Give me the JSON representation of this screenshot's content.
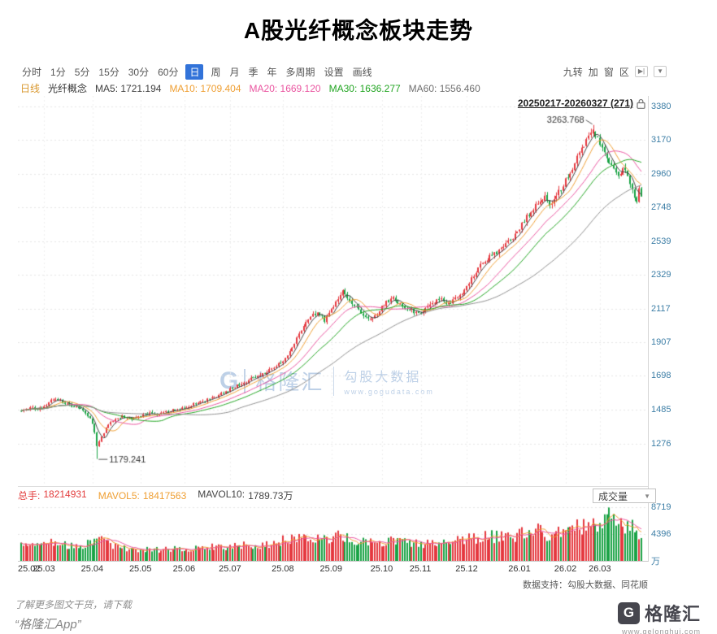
{
  "page": {
    "title": "A股光纤概念板块走势"
  },
  "toolbar": {
    "items": [
      {
        "key": "timeshare",
        "label": "分时",
        "active": false
      },
      {
        "key": "1min",
        "label": "1分",
        "active": false
      },
      {
        "key": "5min",
        "label": "5分",
        "active": false
      },
      {
        "key": "15min",
        "label": "15分",
        "active": false
      },
      {
        "key": "30min",
        "label": "30分",
        "active": false
      },
      {
        "key": "60min",
        "label": "60分",
        "active": false
      },
      {
        "key": "daily",
        "label": "日",
        "active": true
      },
      {
        "key": "weekly",
        "label": "周",
        "active": false
      },
      {
        "key": "monthly",
        "label": "月",
        "active": false
      },
      {
        "key": "quarterly",
        "label": "季",
        "active": false
      },
      {
        "key": "yearly",
        "label": "年",
        "active": false
      },
      {
        "key": "multi-period",
        "label": "多周期",
        "active": false
      },
      {
        "key": "settings",
        "label": "设置",
        "active": false
      },
      {
        "key": "draw-line",
        "label": "画线",
        "active": false
      }
    ],
    "right_items": [
      {
        "key": "nine-turn",
        "label": "九转"
      },
      {
        "key": "add",
        "label": "加"
      },
      {
        "key": "window",
        "label": "窗"
      },
      {
        "key": "zone",
        "label": "区"
      }
    ],
    "skip_icon": "▶|",
    "dropdown_icon": "▼"
  },
  "info_bar": {
    "period_label": "日线",
    "symbol": "光纤概念",
    "ma_items": [
      {
        "key": "ma5",
        "label": "MA5:",
        "value": "1721.194",
        "color": "#3f3f3f"
      },
      {
        "key": "ma10",
        "label": "MA10:",
        "value": "1709.404",
        "color": "#ef9f33"
      },
      {
        "key": "ma20",
        "label": "MA20:",
        "value": "1669.120",
        "color": "#ea55a0"
      },
      {
        "key": "ma30",
        "label": "MA30:",
        "value": "1636.277",
        "color": "#22a522"
      },
      {
        "key": "ma60",
        "label": "MA60:",
        "value": "1556.460",
        "color": "#6f6f6f"
      }
    ],
    "range_label": "20250217-20260327 (271)"
  },
  "watermark": {
    "logo_letter": "G",
    "brand": "格隆汇",
    "product": "勾股大数据",
    "url": "www.gogudata.com"
  },
  "volume_bar": {
    "zongshou_label": "总手:",
    "zongshou_value": "18214931",
    "mavol5_label": "MAVOL5:",
    "mavol5_value": "18417563",
    "mavol10_label": "MAVOL10:",
    "mavol10_value": "1789.73万",
    "selector_label": "成交量",
    "selector_caret": "▼"
  },
  "credit": "数据支持：勾股大数据、同花顺",
  "footer": {
    "promo_line1": "了解更多图文干货，请下载",
    "promo_line2": "“格隆汇App”",
    "logo_letter": "G",
    "logo_text": "格隆汇",
    "site_url": "www.gelonghui.com"
  },
  "chart_data": {
    "type": "candlestick",
    "title": "A股光纤概念板块走势",
    "period": "日线",
    "symbol": "光纤概念",
    "date_range": "20250217-20260327",
    "trading_days": 271,
    "price_axis": {
      "ticks": [
        3380,
        3170,
        2960,
        2748,
        2539,
        2329,
        2117,
        1907,
        1698,
        1485,
        1276
      ],
      "min": 1010,
      "max": 3445
    },
    "volume_axis": {
      "ticks": [
        8719,
        4396
      ],
      "unit": "万",
      "max": 9300
    },
    "x_labels": [
      {
        "day": 0,
        "label": "25.02"
      },
      {
        "day": 10,
        "label": "25.03"
      },
      {
        "day": 31,
        "label": "25.04"
      },
      {
        "day": 52,
        "label": "25.05"
      },
      {
        "day": 71,
        "label": "25.06"
      },
      {
        "day": 91,
        "label": "25.07"
      },
      {
        "day": 114,
        "label": "25.08"
      },
      {
        "day": 135,
        "label": "25.09"
      },
      {
        "day": 157,
        "label": "25.10"
      },
      {
        "day": 174,
        "label": "25.11"
      },
      {
        "day": 194,
        "label": "25.12"
      },
      {
        "day": 217,
        "label": "26.01"
      },
      {
        "day": 237,
        "label": "26.02"
      },
      {
        "day": 252,
        "label": "26.03"
      }
    ],
    "annotations": {
      "high": {
        "day": 249,
        "value": 3263.768,
        "label": "3263.768"
      },
      "low": {
        "day": 33,
        "value": 1179.241,
        "label": "1179.241"
      }
    },
    "price_keyframes": [
      [
        0,
        1480
      ],
      [
        4,
        1500
      ],
      [
        8,
        1492
      ],
      [
        10,
        1512
      ],
      [
        14,
        1556
      ],
      [
        17,
        1545
      ],
      [
        21,
        1516
      ],
      [
        25,
        1498
      ],
      [
        29,
        1452
      ],
      [
        31,
        1400
      ],
      [
        32,
        1345
      ],
      [
        33,
        1262
      ],
      [
        34,
        1290
      ],
      [
        36,
        1345
      ],
      [
        38,
        1398
      ],
      [
        41,
        1426
      ],
      [
        44,
        1445
      ],
      [
        48,
        1432
      ],
      [
        52,
        1452
      ],
      [
        56,
        1462
      ],
      [
        60,
        1455
      ],
      [
        64,
        1478
      ],
      [
        68,
        1490
      ],
      [
        71,
        1502
      ],
      [
        75,
        1522
      ],
      [
        79,
        1540
      ],
      [
        83,
        1562
      ],
      [
        87,
        1585
      ],
      [
        91,
        1612
      ],
      [
        95,
        1645
      ],
      [
        99,
        1672
      ],
      [
        103,
        1698
      ],
      [
        107,
        1728
      ],
      [
        110,
        1755
      ],
      [
        114,
        1792
      ],
      [
        117,
        1850
      ],
      [
        120,
        1932
      ],
      [
        123,
        2005
      ],
      [
        126,
        2068
      ],
      [
        129,
        2098
      ],
      [
        132,
        2042
      ],
      [
        134,
        2080
      ],
      [
        136,
        2132
      ],
      [
        138,
        2185
      ],
      [
        140,
        2222
      ],
      [
        142,
        2195
      ],
      [
        144,
        2152
      ],
      [
        147,
        2108
      ],
      [
        150,
        2070
      ],
      [
        153,
        2058
      ],
      [
        155,
        2088
      ],
      [
        157,
        2128
      ],
      [
        160,
        2168
      ],
      [
        162,
        2182
      ],
      [
        165,
        2150
      ],
      [
        168,
        2118
      ],
      [
        171,
        2096
      ],
      [
        174,
        2088
      ],
      [
        177,
        2122
      ],
      [
        180,
        2158
      ],
      [
        183,
        2172
      ],
      [
        186,
        2146
      ],
      [
        189,
        2178
      ],
      [
        192,
        2215
      ],
      [
        194,
        2258
      ],
      [
        197,
        2322
      ],
      [
        200,
        2388
      ],
      [
        203,
        2432
      ],
      [
        206,
        2458
      ],
      [
        209,
        2495
      ],
      [
        212,
        2532
      ],
      [
        215,
        2578
      ],
      [
        217,
        2625
      ],
      [
        220,
        2688
      ],
      [
        223,
        2742
      ],
      [
        226,
        2782
      ],
      [
        228,
        2815
      ],
      [
        230,
        2772
      ],
      [
        232,
        2806
      ],
      [
        234,
        2845
      ],
      [
        237,
        2915
      ],
      [
        239,
        2972
      ],
      [
        241,
        3028
      ],
      [
        243,
        3082
      ],
      [
        245,
        3135
      ],
      [
        247,
        3182
      ],
      [
        249,
        3235
      ],
      [
        250,
        3205
      ],
      [
        252,
        3152
      ],
      [
        254,
        3092
      ],
      [
        256,
        3035
      ],
      [
        258,
        2992
      ],
      [
        260,
        2958
      ],
      [
        262,
        2992
      ],
      [
        264,
        2935
      ],
      [
        266,
        2872
      ],
      [
        268,
        2768
      ],
      [
        269,
        2852
      ],
      [
        270,
        2828
      ]
    ],
    "volume_keyframes": [
      [
        0,
        2500
      ],
      [
        6,
        2750
      ],
      [
        10,
        2850
      ],
      [
        14,
        3100
      ],
      [
        18,
        2600
      ],
      [
        23,
        2350
      ],
      [
        29,
        2900
      ],
      [
        33,
        4100
      ],
      [
        36,
        3100
      ],
      [
        40,
        2450
      ],
      [
        45,
        2050
      ],
      [
        52,
        1900
      ],
      [
        58,
        1800
      ],
      [
        64,
        1900
      ],
      [
        71,
        2050
      ],
      [
        78,
        2200
      ],
      [
        85,
        2350
      ],
      [
        91,
        2400
      ],
      [
        98,
        2550
      ],
      [
        105,
        2700
      ],
      [
        110,
        2900
      ],
      [
        114,
        3300
      ],
      [
        119,
        3750
      ],
      [
        124,
        4050
      ],
      [
        129,
        3500
      ],
      [
        133,
        3700
      ],
      [
        137,
        3950
      ],
      [
        141,
        3700
      ],
      [
        146,
        3200
      ],
      [
        151,
        2850
      ],
      [
        155,
        3000
      ],
      [
        159,
        3200
      ],
      [
        163,
        3100
      ],
      [
        168,
        2900
      ],
      [
        174,
        2800
      ],
      [
        179,
        3000
      ],
      [
        184,
        3050
      ],
      [
        189,
        3100
      ],
      [
        194,
        3550
      ],
      [
        199,
        3900
      ],
      [
        204,
        4050
      ],
      [
        209,
        3850
      ],
      [
        213,
        4050
      ],
      [
        217,
        4350
      ],
      [
        221,
        4650
      ],
      [
        225,
        4850
      ],
      [
        228,
        4550
      ],
      [
        231,
        4250
      ],
      [
        234,
        4650
      ],
      [
        237,
        5050
      ],
      [
        241,
        5350
      ],
      [
        245,
        5650
      ],
      [
        249,
        6500
      ],
      [
        252,
        6100
      ],
      [
        254,
        7200
      ],
      [
        256,
        8719
      ],
      [
        258,
        6400
      ],
      [
        260,
        5600
      ],
      [
        262,
        5900
      ],
      [
        264,
        5400
      ],
      [
        266,
        5800
      ],
      [
        268,
        4900
      ],
      [
        270,
        4400
      ]
    ],
    "volume_peak_day": 256,
    "volume_peak": 8719,
    "moving_averages": [
      5,
      10,
      20,
      30,
      60
    ],
    "colors": {
      "up": "#e5383f",
      "down": "#1aa345",
      "ma5": "#3f3f3f",
      "ma10": "#ef9f33",
      "ma20": "#ea55a0",
      "ma30": "#22a522",
      "ma60": "#8f8f8f",
      "mavol5": "#ef9f33",
      "mavol10": "#ea55a0",
      "axis_label": "#3d7ea6",
      "grid": "#e4e4e4",
      "annotation": "#333333"
    },
    "noise_seed": 11
  }
}
